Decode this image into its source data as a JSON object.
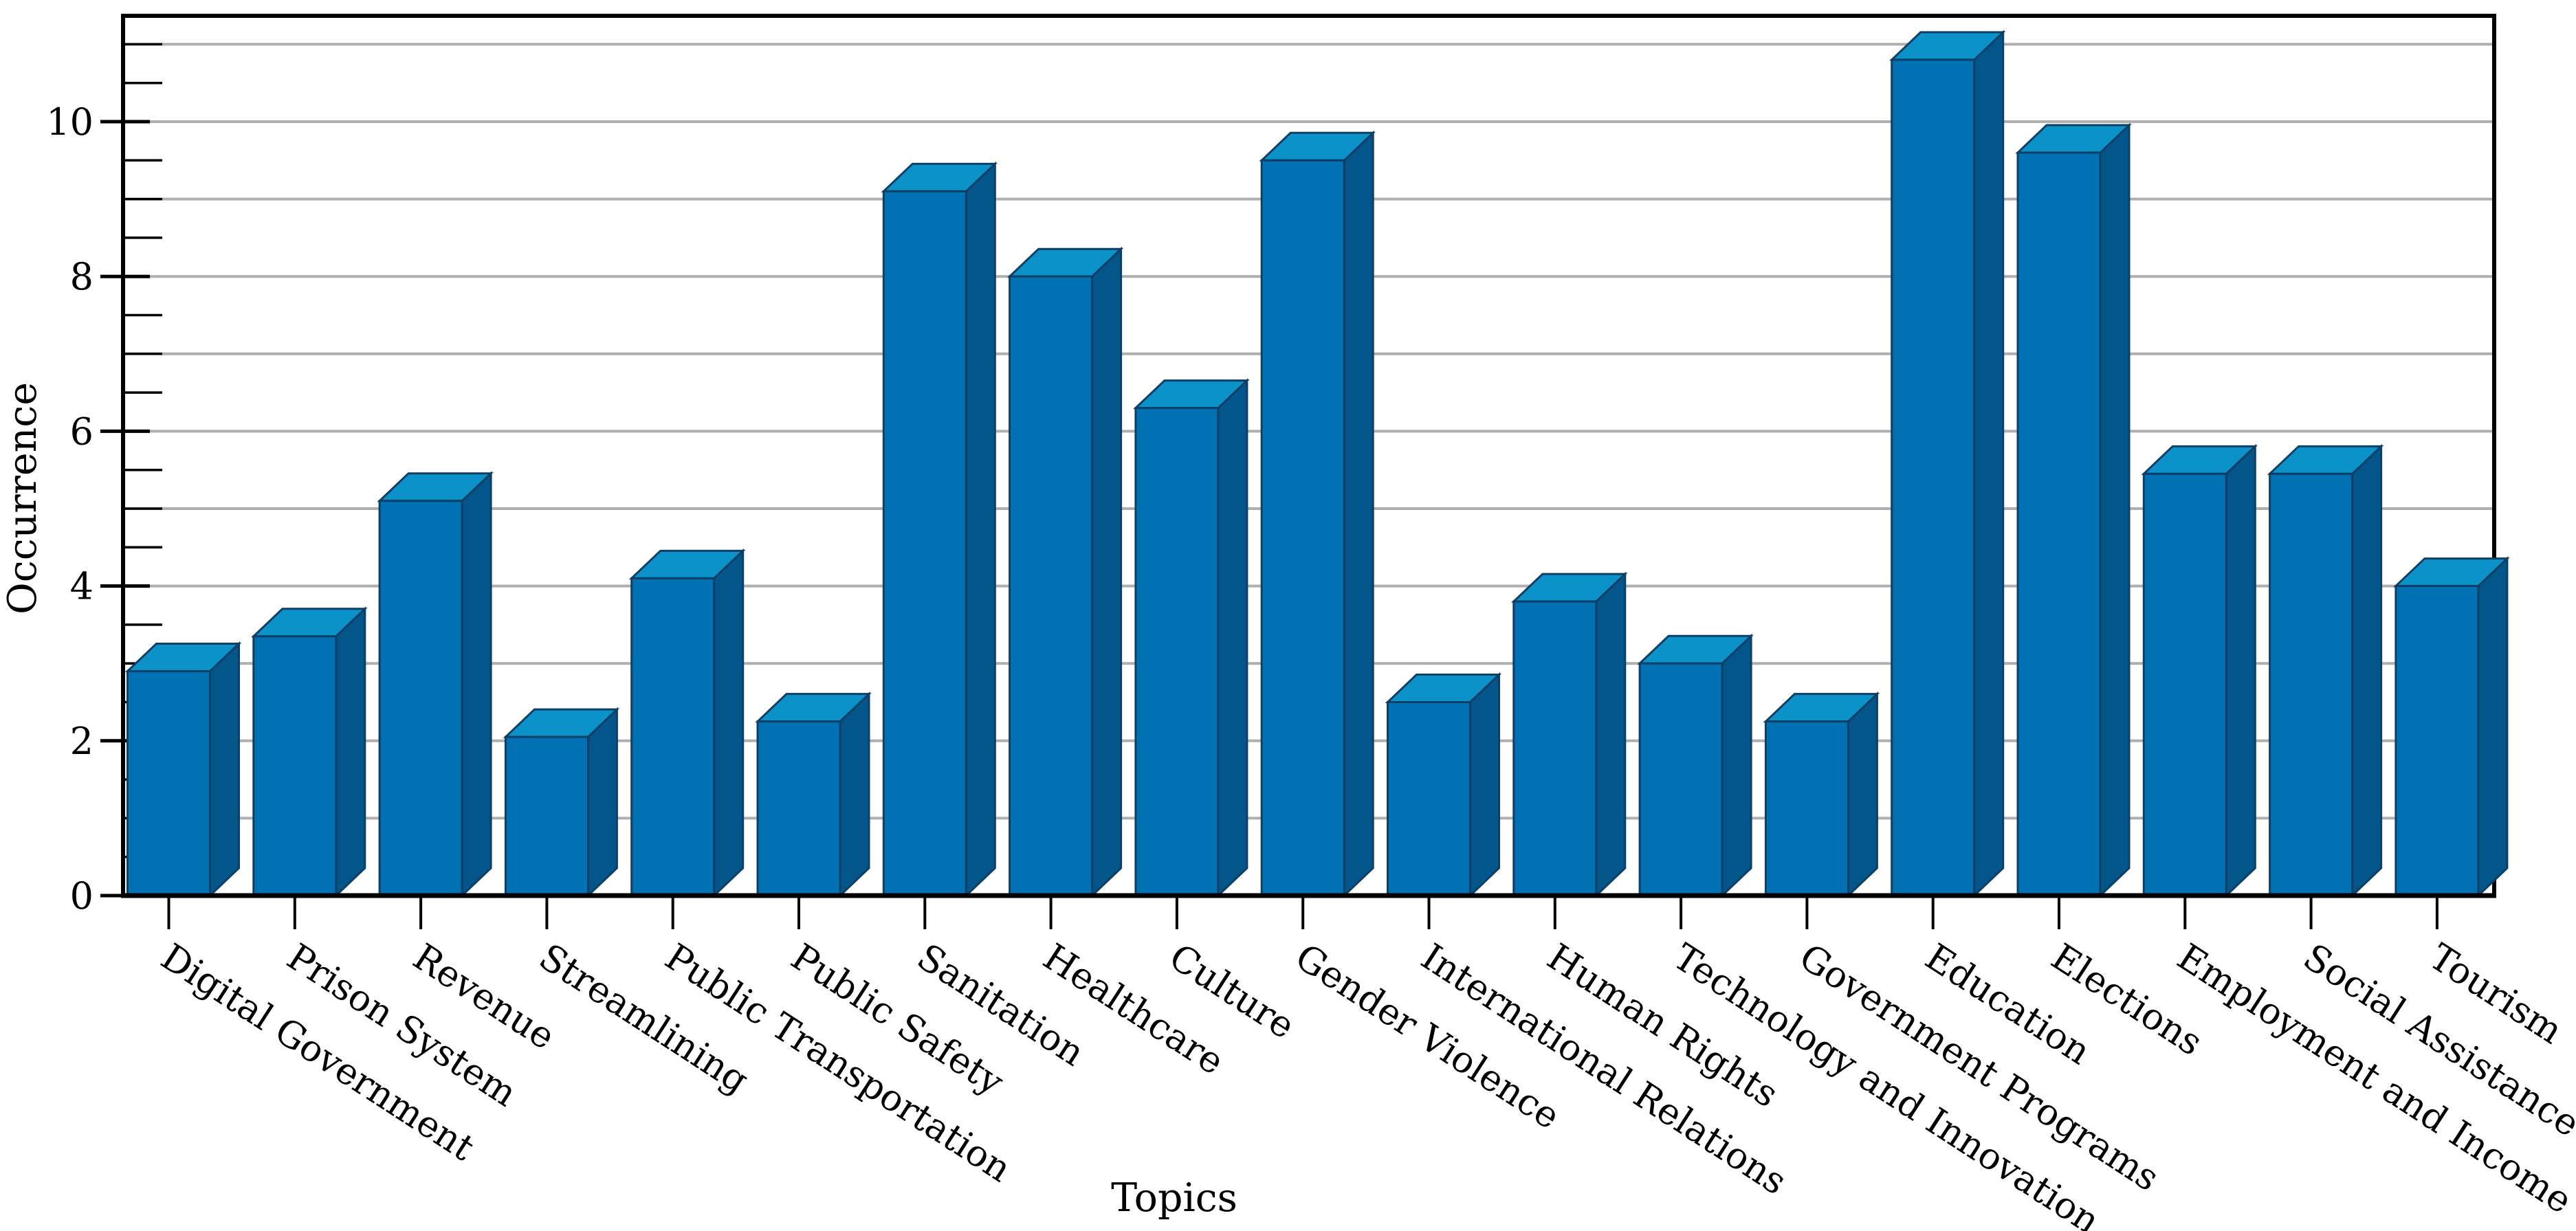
{
  "figure": {
    "background": "#ffffff"
  },
  "chart_data": {
    "type": "bar",
    "style": "3d-bars",
    "title": "",
    "xlabel": "Topics",
    "ylabel": "Occurrence",
    "categories": [
      "Digital Government",
      "Prison System",
      "Revenue",
      "Streamlining",
      "Public Transportation",
      "Public Safety",
      "Sanitation",
      "Healthcare",
      "Culture",
      "Gender Violence",
      "International Relations",
      "Human Rights",
      "Technology and Innovation",
      "Government Programs",
      "Education",
      "Elections",
      "Employment and Income",
      "Social Assistance",
      "Tourism"
    ],
    "values": [
      2.9,
      3.35,
      5.1,
      2.05,
      4.1,
      2.25,
      9.1,
      8.0,
      6.3,
      9.5,
      2.5,
      3.8,
      3.0,
      2.25,
      10.8,
      9.6,
      5.45,
      5.45,
      4.0
    ],
    "ylim": [
      0,
      11.37
    ],
    "ytick_values": [
      0,
      2,
      4,
      6,
      8,
      10
    ],
    "ytick_labels": [
      "0",
      "2",
      "4",
      "6",
      "8",
      "10"
    ],
    "minor_tick_step": 0.5,
    "gridline_values": [
      1,
      2,
      3,
      4,
      5,
      6,
      7,
      8,
      9,
      10,
      11
    ],
    "grid": true,
    "legend_position": "none",
    "x_label_rotation_deg": 33,
    "colors": {
      "bar_front": "#0071b3",
      "bar_top": "#0b92c9",
      "bar_side": "#02568a",
      "bar_edge": "#0e3f66",
      "grid": "#afafaf",
      "axis": "#000000",
      "text": "#000000"
    }
  }
}
